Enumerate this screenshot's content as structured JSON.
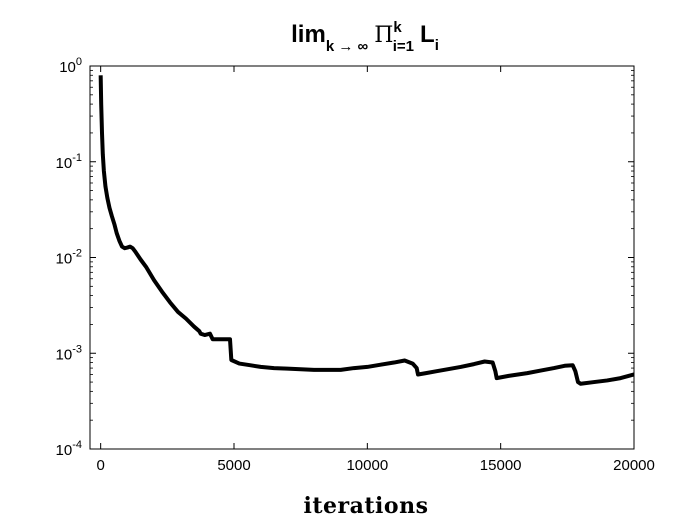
{
  "chart_data": {
    "type": "line",
    "title": {
      "base": "lim",
      "limit_sub": "k → ∞",
      "product_symbol": "Π",
      "product_sup": "k",
      "product_sub": "i=1",
      "term": "L",
      "term_sub": "i"
    },
    "xlabel": "iterations",
    "ylabel": "",
    "xlim": [
      -400,
      20000
    ],
    "ylim": [
      0.0001,
      1
    ],
    "yscale": "log",
    "grid": false,
    "legend": "none",
    "x_ticks": [
      0,
      5000,
      10000,
      15000,
      20000
    ],
    "x_tick_labels": [
      "0",
      "5000",
      "10000",
      "15000",
      "20000"
    ],
    "y_ticks": [
      0.0001,
      0.001,
      0.01,
      0.1,
      1
    ],
    "y_tick_labels": [
      {
        "base": "10",
        "exp": "-4"
      },
      {
        "base": "10",
        "exp": "-3"
      },
      {
        "base": "10",
        "exp": "-2"
      },
      {
        "base": "10",
        "exp": "-1"
      },
      {
        "base": "10",
        "exp": "0"
      }
    ],
    "line_color": "#000000",
    "series": [
      {
        "x": [
          0,
          20,
          50,
          80,
          120,
          180,
          250,
          330,
          420,
          520,
          600,
          700,
          800,
          900,
          1000,
          1100,
          1200,
          1300,
          1500,
          1700,
          2000,
          2300,
          2600,
          2900,
          3200,
          3500,
          3700,
          3750,
          3900,
          4100,
          4200,
          4300,
          4450,
          4700,
          4850,
          4900,
          5200,
          5600,
          6000,
          6500,
          7000,
          7500,
          8000,
          8500,
          9000,
          9500,
          10000,
          10500,
          11000,
          11400,
          11700,
          11850,
          11900,
          12200,
          12600,
          13000,
          13500,
          14000,
          14400,
          14700,
          14800,
          14850,
          15300,
          16000,
          16500,
          17000,
          17400,
          17700,
          17800,
          17900,
          18000,
          18500,
          19000,
          19500,
          20000
        ],
        "y": [
          0.8,
          0.4,
          0.2,
          0.12,
          0.08,
          0.055,
          0.042,
          0.033,
          0.027,
          0.022,
          0.018,
          0.015,
          0.013,
          0.0125,
          0.0127,
          0.013,
          0.0125,
          0.0115,
          0.0095,
          0.008,
          0.0058,
          0.0044,
          0.0034,
          0.0027,
          0.0023,
          0.0019,
          0.0017,
          0.0016,
          0.00155,
          0.0016,
          0.0014,
          0.0014,
          0.0014,
          0.0014,
          0.0014,
          0.00085,
          0.00078,
          0.00075,
          0.00072,
          0.0007,
          0.00069,
          0.00068,
          0.00067,
          0.00067,
          0.00067,
          0.0007,
          0.00072,
          0.00076,
          0.0008,
          0.00084,
          0.00078,
          0.0007,
          0.0006,
          0.00062,
          0.00065,
          0.00068,
          0.00072,
          0.00077,
          0.00082,
          0.0008,
          0.00065,
          0.00055,
          0.00058,
          0.00062,
          0.00066,
          0.0007,
          0.00074,
          0.00075,
          0.00065,
          0.0005,
          0.00048,
          0.0005,
          0.00052,
          0.00055,
          0.0006
        ]
      }
    ]
  }
}
